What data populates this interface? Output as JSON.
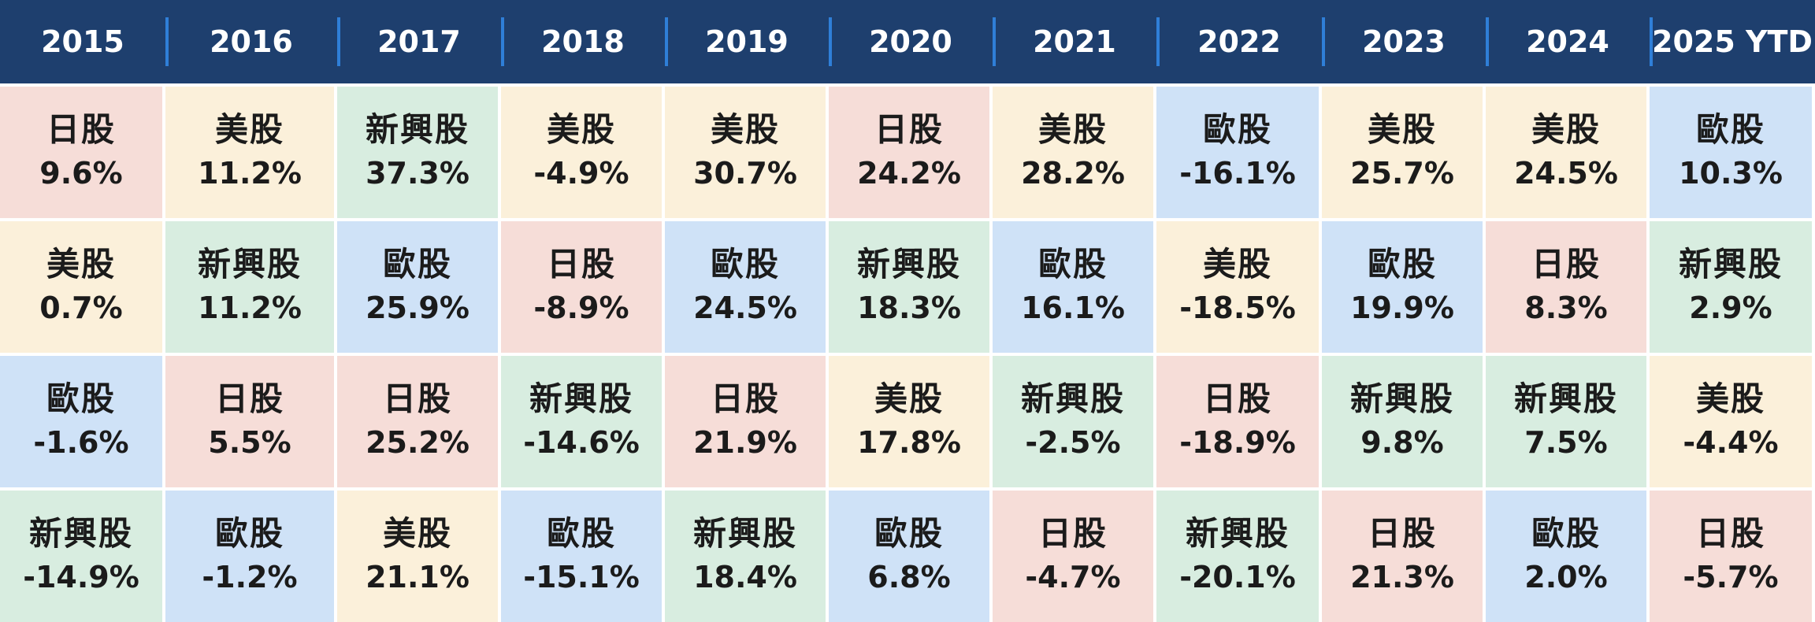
{
  "colors": {
    "header_bg": "#1e3f6e",
    "header_separator": "#2f7fd8",
    "日股": "#f6ddd8",
    "美股": "#fbf0da",
    "新興股": "#d8ede0",
    "歐股": "#cfe2f7"
  },
  "chart_data": {
    "type": "table",
    "columns": [
      "2015",
      "2016",
      "2017",
      "2018",
      "2019",
      "2020",
      "2021",
      "2022",
      "2023",
      "2024",
      "2025 YTD"
    ],
    "rows": [
      [
        {
          "market": "日股",
          "return": "9.6%"
        },
        {
          "market": "美股",
          "return": "11.2%"
        },
        {
          "market": "新興股",
          "return": "37.3%"
        },
        {
          "market": "美股",
          "return": "-4.9%"
        },
        {
          "market": "美股",
          "return": "30.7%"
        },
        {
          "market": "日股",
          "return": "24.2%"
        },
        {
          "market": "美股",
          "return": "28.2%"
        },
        {
          "market": "歐股",
          "return": "-16.1%"
        },
        {
          "market": "美股",
          "return": "25.7%"
        },
        {
          "market": "美股",
          "return": "24.5%"
        },
        {
          "market": "歐股",
          "return": "10.3%"
        }
      ],
      [
        {
          "market": "美股",
          "return": "0.7%"
        },
        {
          "market": "新興股",
          "return": "11.2%"
        },
        {
          "market": "歐股",
          "return": "25.9%"
        },
        {
          "market": "日股",
          "return": "-8.9%"
        },
        {
          "market": "歐股",
          "return": "24.5%"
        },
        {
          "market": "新興股",
          "return": "18.3%"
        },
        {
          "market": "歐股",
          "return": "16.1%"
        },
        {
          "market": "美股",
          "return": "-18.5%"
        },
        {
          "market": "歐股",
          "return": "19.9%"
        },
        {
          "market": "日股",
          "return": "8.3%"
        },
        {
          "market": "新興股",
          "return": "2.9%"
        }
      ],
      [
        {
          "market": "歐股",
          "return": "-1.6%"
        },
        {
          "market": "日股",
          "return": "5.5%"
        },
        {
          "market": "日股",
          "return": "25.2%"
        },
        {
          "market": "新興股",
          "return": "-14.6%"
        },
        {
          "market": "日股",
          "return": "21.9%"
        },
        {
          "market": "美股",
          "return": "17.8%"
        },
        {
          "market": "新興股",
          "return": "-2.5%"
        },
        {
          "market": "日股",
          "return": "-18.9%"
        },
        {
          "market": "新興股",
          "return": "9.8%"
        },
        {
          "market": "新興股",
          "return": "7.5%"
        },
        {
          "market": "美股",
          "return": "-4.4%"
        }
      ],
      [
        {
          "market": "新興股",
          "return": "-14.9%"
        },
        {
          "market": "歐股",
          "return": "-1.2%"
        },
        {
          "market": "美股",
          "return": "21.1%"
        },
        {
          "market": "歐股",
          "return": "-15.1%"
        },
        {
          "market": "新興股",
          "return": "18.4%"
        },
        {
          "market": "歐股",
          "return": "6.8%"
        },
        {
          "market": "日股",
          "return": "-4.7%"
        },
        {
          "market": "新興股",
          "return": "-20.1%"
        },
        {
          "market": "日股",
          "return": "21.3%"
        },
        {
          "market": "歐股",
          "return": "2.0%"
        },
        {
          "market": "日股",
          "return": "-5.7%"
        }
      ]
    ]
  }
}
